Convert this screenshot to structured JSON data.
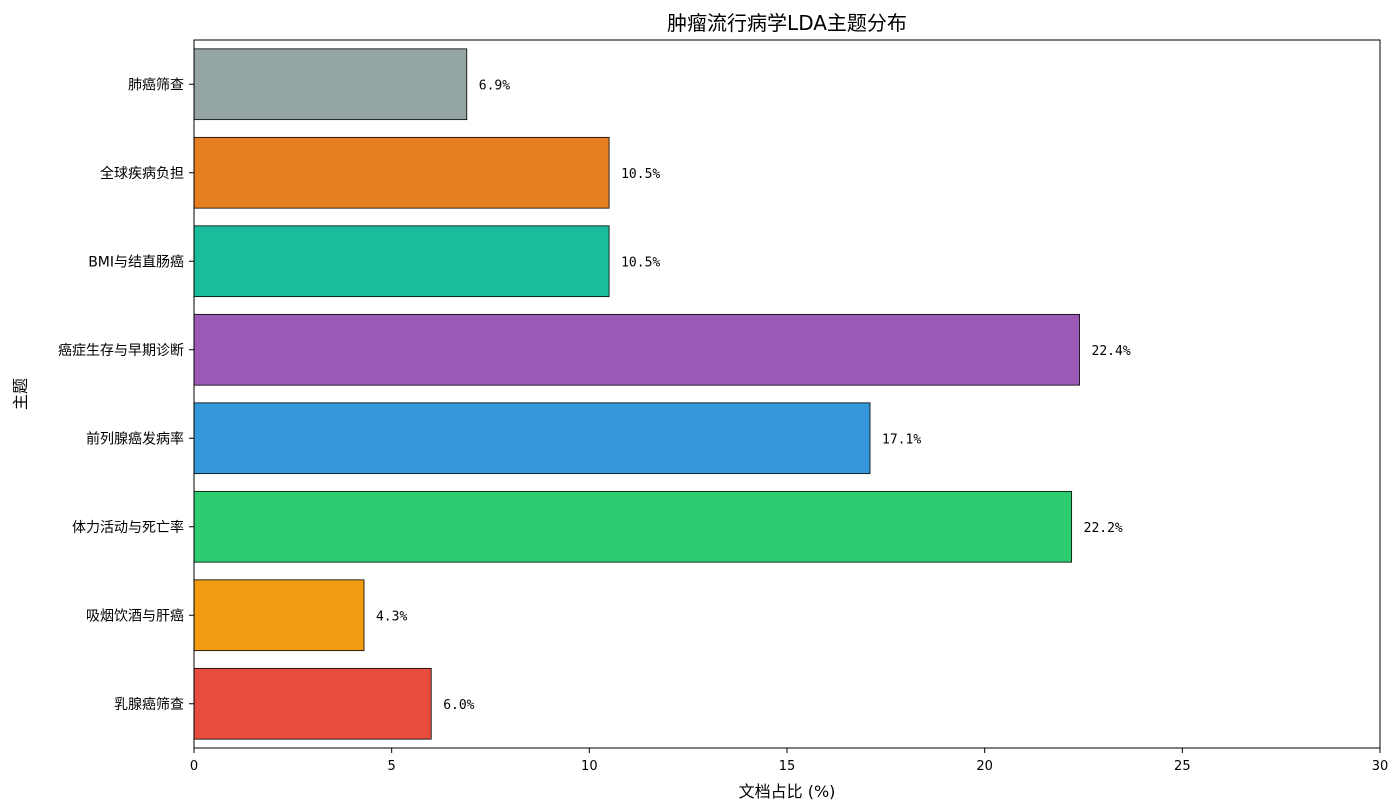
{
  "chart_data": {
    "type": "bar",
    "orientation": "horizontal",
    "title": "肿瘤流行病学LDA主题分布",
    "xlabel": "文档占比 (%)",
    "ylabel": "主题",
    "xlim": [
      0,
      30
    ],
    "xticks": [
      "0",
      "5",
      "10",
      "15",
      "20",
      "25",
      "30"
    ],
    "grid": false,
    "categories": [
      "乳腺癌筛查",
      "吸烟饮酒与肝癌",
      "体力活动与死亡率",
      "前列腺癌发病率",
      "癌症生存与早期诊断",
      "BMI与结直肠癌",
      "全球疾病负担",
      "肺癌筛查"
    ],
    "values": [
      6.0,
      4.3,
      22.2,
      17.1,
      22.4,
      10.5,
      10.5,
      6.9
    ],
    "value_labels": [
      "6.0%",
      "4.3%",
      "22.2%",
      "17.1%",
      "22.4%",
      "10.5%",
      "10.5%",
      "6.9%"
    ],
    "colors": [
      "#e74c3c",
      "#f39c12",
      "#2ecc71",
      "#3498db",
      "#9b59b6",
      "#1abc9c",
      "#e67e22",
      "#95a5a6"
    ]
  }
}
